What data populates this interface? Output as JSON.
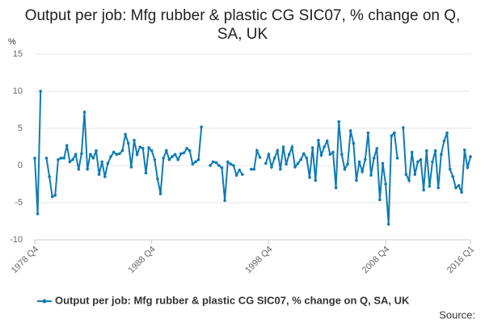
{
  "chart_data": {
    "type": "line",
    "title": "Output per job: Mfg rubber & plastic CG SIC07, % change on Q, SA, UK",
    "y_label": "%",
    "source": "Source:",
    "categories": [
      "1978 Q4",
      null,
      null,
      null,
      null,
      null,
      null,
      null,
      null,
      null,
      null,
      null,
      null,
      null,
      null,
      null,
      null,
      null,
      null,
      null,
      null,
      null,
      null,
      null,
      null,
      null,
      null,
      null,
      null,
      null,
      null,
      null,
      null,
      null,
      null,
      null,
      null,
      null,
      null,
      null,
      "1988 Q4",
      null,
      null,
      null,
      null,
      null,
      null,
      null,
      null,
      null,
      null,
      null,
      null,
      null,
      null,
      null,
      null,
      null,
      null,
      null,
      null,
      null,
      null,
      null,
      null,
      null,
      null,
      null,
      null,
      null,
      null,
      null,
      null,
      null,
      null,
      null,
      null,
      null,
      null,
      null,
      "1998 Q4",
      null,
      null,
      null,
      null,
      null,
      null,
      null,
      null,
      null,
      null,
      null,
      null,
      null,
      null,
      null,
      null,
      null,
      null,
      null,
      null,
      null,
      null,
      null,
      null,
      null,
      null,
      null,
      null,
      null,
      null,
      null,
      null,
      null,
      null,
      null,
      null,
      null,
      null,
      null,
      "2008 Q4",
      null,
      null,
      null,
      null,
      null,
      null,
      null,
      null,
      null,
      null,
      null,
      null,
      null,
      null,
      null,
      null,
      null,
      null,
      null,
      null,
      null,
      null,
      null,
      null,
      null,
      null,
      null,
      null,
      "2016 Q1"
    ],
    "series": [
      {
        "name": "Output per job: Mfg rubber & plastic CG SIC07, % change on Q, SA, UK",
        "color": "#0e7bb6",
        "values": [
          1.0,
          -6.5,
          10.0,
          null,
          1.0,
          -1.5,
          -4.2,
          -4.0,
          0.8,
          1.0,
          1.0,
          2.7,
          0.5,
          0.8,
          1.5,
          -0.5,
          1.6,
          7.2,
          -0.5,
          1.5,
          1.0,
          2.0,
          -1.2,
          0.5,
          -1.5,
          0.3,
          1.2,
          1.8,
          1.5,
          1.6,
          2.0,
          4.2,
          3.0,
          -0.2,
          3.4,
          1.5,
          2.5,
          2.3,
          -1.0,
          2.4,
          2.0,
          0.8,
          -1.8,
          -3.8,
          1.0,
          2.0,
          0.8,
          1.2,
          1.5,
          0.8,
          1.6,
          1.7,
          2.3,
          2.0,
          0.2,
          0.5,
          0.8,
          5.2,
          null,
          null,
          0.0,
          0.5,
          0.4,
          0.0,
          -0.3,
          -4.7,
          0.5,
          0.2,
          0.0,
          -1.3,
          -0.6,
          -1.2,
          null,
          null,
          -0.5,
          -0.5,
          2.0,
          1.1,
          null,
          0.3,
          1.5,
          -0.2,
          1.0,
          2.0,
          -0.5,
          2.5,
          0.2,
          1.5,
          2.5,
          -0.2,
          0.3,
          0.8,
          1.6,
          1.0,
          -1.6,
          2.4,
          -2.0,
          3.4,
          1.4,
          2.5,
          3.3,
          1.5,
          1.8,
          -3.0,
          5.9,
          1.5,
          -0.5,
          0.2,
          4.7,
          3.0,
          -2.0,
          0.5,
          -0.8,
          0.8,
          4.4,
          -1.3,
          1.0,
          2.3,
          -4.6,
          0.3,
          -2.5,
          -7.9,
          4.0,
          4.4,
          1.0,
          null,
          5.1,
          -1.2,
          -2.0,
          1.8,
          -1.2,
          0.5,
          0.8,
          -3.3,
          2.0,
          -2.8,
          0.5,
          2.0,
          -3.0,
          1.5,
          3.3,
          4.4,
          -0.5,
          -1.5,
          -3.0,
          -2.7,
          -3.6,
          2.1,
          -0.3,
          1.2
        ]
      }
    ],
    "ylim": [
      -10,
      15
    ],
    "yticks": [
      -10,
      -5,
      0,
      5,
      10,
      15
    ],
    "grid": true
  }
}
